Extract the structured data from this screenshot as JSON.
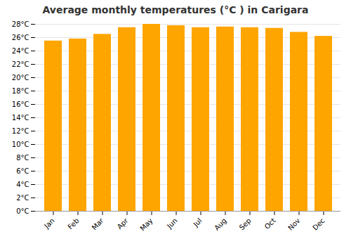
{
  "chart_data": {
    "type": "bar",
    "title": "Average monthly temperatures (°C ) in Carigara",
    "categories": [
      "Jan",
      "Feb",
      "Mar",
      "Apr",
      "May",
      "Jun",
      "Jul",
      "Aug",
      "Sep",
      "Oct",
      "Nov",
      "Dec"
    ],
    "values": [
      25.5,
      25.8,
      26.5,
      27.5,
      28.0,
      27.8,
      27.5,
      27.6,
      27.5,
      27.4,
      26.8,
      26.2
    ],
    "color": "#FFA500",
    "ylim": [
      0,
      28
    ],
    "yticks": [
      {
        "value": 0,
        "label": "0°C"
      },
      {
        "value": 2,
        "label": "2°C"
      },
      {
        "value": 4,
        "label": "4°C"
      },
      {
        "value": 6,
        "label": "6°C"
      },
      {
        "value": 8,
        "label": "8°C"
      },
      {
        "value": 10,
        "label": "10°C"
      },
      {
        "value": 12,
        "label": "12°C"
      },
      {
        "value": 14,
        "label": "14°C"
      },
      {
        "value": 16,
        "label": "16°C"
      },
      {
        "value": 18,
        "label": "18°C"
      },
      {
        "value": 20,
        "label": "20°C"
      },
      {
        "value": 22,
        "label": "22°C"
      },
      {
        "value": 24,
        "label": "24°C"
      },
      {
        "value": 26,
        "label": "26°C"
      },
      {
        "value": 28,
        "label": "28°C"
      }
    ],
    "grid": true
  }
}
